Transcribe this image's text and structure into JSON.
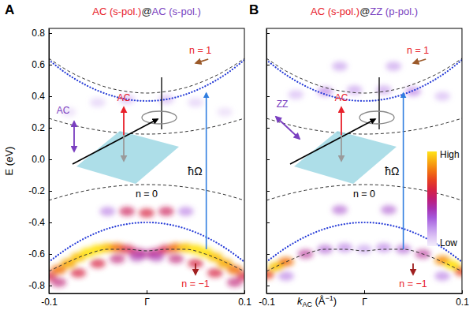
{
  "chart_data": [
    {
      "type": "heatmap",
      "label": "A",
      "title": [
        {
          "text": "AC (s-pol.)",
          "color": "#e8202a"
        },
        {
          "text": "@",
          "color": "#222222"
        },
        {
          "text": "AC (s-pol.)",
          "color": "#7a3fc0"
        }
      ],
      "ylabel": "E (eV)",
      "xlim": [
        -0.1,
        0.1
      ],
      "ylim": [
        -0.85,
        0.83
      ],
      "xticks": [
        {
          "value": -0.1,
          "label": "-0.1"
        },
        {
          "value": 0,
          "label": "Γ"
        },
        0.1
      ],
      "yticks": [
        {
          "value": -0.8,
          "label": "-0.8"
        },
        {
          "value": -0.6,
          "label": "-0.6"
        },
        {
          "value": -0.4,
          "label": "-0.4"
        },
        {
          "value": -0.2,
          "label": "-0.2"
        },
        {
          "value": 0,
          "label": "0.0"
        },
        0.2,
        0.4,
        0.6,
        0.8
      ],
      "x": [
        -0.1,
        -0.08,
        -0.06,
        -0.04,
        -0.02,
        0,
        0.02,
        0.04,
        0.06,
        0.08,
        0.1
      ],
      "series": [
        {
          "color": "#333333",
          "line_style": "dashed",
          "values": [
            0.64,
            0.56,
            0.5,
            0.455,
            0.43,
            0.42,
            0.43,
            0.455,
            0.5,
            0.56,
            0.64
          ]
        },
        {
          "color": "#333333",
          "line_style": "dashed",
          "values": [
            0.26,
            0.224,
            0.196,
            0.176,
            0.164,
            0.16,
            0.164,
            0.176,
            0.196,
            0.224,
            0.26
          ]
        },
        {
          "color": "#333333",
          "line_style": "dashed",
          "values": [
            -0.26,
            -0.224,
            -0.196,
            -0.176,
            -0.164,
            -0.16,
            -0.164,
            -0.176,
            -0.196,
            -0.224,
            -0.26
          ]
        },
        {
          "color": "#333333",
          "line_style": "dashed",
          "values": [
            -0.71,
            -0.65,
            -0.6,
            -0.57,
            -0.57,
            -0.58,
            -0.57,
            -0.57,
            -0.6,
            -0.65,
            -0.71
          ]
        },
        {
          "color": "#2a3fd8",
          "line_style": "dotted",
          "values": [
            0.63,
            0.536,
            0.464,
            0.412,
            0.38,
            0.37,
            0.38,
            0.412,
            0.464,
            0.536,
            0.63
          ]
        },
        {
          "color": "#2a3fd8",
          "line_style": "dotted",
          "values": [
            -0.65,
            -0.56,
            -0.49,
            -0.44,
            -0.41,
            -0.4,
            -0.41,
            -0.44,
            -0.49,
            -0.56,
            -0.65
          ]
        }
      ],
      "intensity": {
        "range": [
          0,
          1
        ],
        "x": [
          -0.1,
          -0.09,
          -0.08,
          -0.07,
          -0.06,
          -0.05,
          -0.04,
          -0.03,
          -0.02,
          -0.01,
          0,
          0.01,
          0.02,
          0.03,
          0.04,
          0.05,
          0.06,
          0.07,
          0.08,
          0.09,
          0.1,
          -0.09,
          -0.07,
          -0.05,
          -0.03,
          -0.01,
          0.01,
          0.03,
          0.05,
          0.07,
          0.09,
          -0.04,
          -0.02,
          0,
          0.02,
          0.04,
          -0.08,
          -0.05,
          -0.02,
          0.02,
          0.05,
          0.08
        ],
        "y": [
          -0.74,
          -0.7,
          -0.66,
          -0.62,
          -0.59,
          -0.57,
          -0.56,
          -0.56,
          -0.57,
          -0.59,
          -0.6,
          -0.59,
          -0.57,
          -0.56,
          -0.56,
          -0.57,
          -0.59,
          -0.62,
          -0.66,
          -0.7,
          -0.74,
          -0.78,
          -0.72,
          -0.66,
          -0.63,
          -0.62,
          -0.62,
          -0.63,
          -0.66,
          -0.72,
          -0.78,
          -0.33,
          -0.33,
          -0.34,
          -0.33,
          -0.33,
          0.3,
          0.36,
          0.38,
          0.38,
          0.36,
          0.3
        ],
        "values": [
          0.6,
          0.8,
          0.9,
          0.95,
          1,
          1,
          0.95,
          0.8,
          0.6,
          0.5,
          0.45,
          0.5,
          0.6,
          0.8,
          0.95,
          1,
          1,
          0.95,
          0.9,
          0.8,
          0.6,
          0.5,
          0.6,
          0.6,
          0.5,
          0.4,
          0.4,
          0.5,
          0.6,
          0.6,
          0.5,
          0.3,
          0.55,
          0.6,
          0.55,
          0.3,
          0.12,
          0.15,
          0.2,
          0.2,
          0.15,
          0.12
        ]
      },
      "annotations": [
        {
          "text": "n = 1",
          "x": 0.055,
          "y": 0.69,
          "color": "#e8202a",
          "marker": "arrow-left"
        },
        {
          "text": "n = 0",
          "x": 0,
          "y": -0.22,
          "color": "#000000"
        },
        {
          "text": "n = −1",
          "x": 0.05,
          "y": -0.79,
          "color": "#e8202a",
          "marker": "arrow-down"
        }
      ],
      "arrows": [
        {
          "label": "ħΩ",
          "x": 0.061,
          "y": [
            -0.57,
            0.42
          ],
          "color": "#2f7de0"
        }
      ],
      "inset": {
        "labels": [
          {
            "text": "AC",
            "color": "#e8202a"
          },
          {
            "text": "AC",
            "color": "#7a3fc0"
          }
        ]
      }
    },
    {
      "type": "heatmap",
      "label": "B",
      "title": [
        {
          "text": "AC (s-pol.)",
          "color": "#e8202a"
        },
        {
          "text": "@",
          "color": "#222222"
        },
        {
          "text": "ZZ (p-pol.)",
          "color": "#7a3fc0"
        }
      ],
      "xlabel": {
        "text": "k",
        "subscript": "AC",
        "unit": " (Å",
        "superscript": "−1",
        "end": ")"
      },
      "tick_labels": "x",
      "xlim": [
        -0.1,
        0.1
      ],
      "ylim": [
        -0.85,
        0.83
      ],
      "xticks": [
        {
          "value": -0.1,
          "label": "-0.1"
        },
        {
          "value": 0,
          "label": "Γ"
        },
        0.1
      ],
      "yticks": [
        -0.8,
        -0.6,
        -0.4,
        -0.2,
        0,
        0.2,
        0.4,
        0.6,
        0.8
      ],
      "x": [
        -0.1,
        -0.08,
        -0.06,
        -0.04,
        -0.02,
        0,
        0.02,
        0.04,
        0.06,
        0.08,
        0.1
      ],
      "series": [
        {
          "color": "#333333",
          "line_style": "dashed",
          "values": [
            0.64,
            0.56,
            0.5,
            0.455,
            0.43,
            0.42,
            0.43,
            0.455,
            0.5,
            0.56,
            0.64
          ]
        },
        {
          "color": "#333333",
          "line_style": "dashed",
          "values": [
            0.26,
            0.224,
            0.196,
            0.176,
            0.164,
            0.16,
            0.164,
            0.176,
            0.196,
            0.224,
            0.26
          ]
        },
        {
          "color": "#333333",
          "line_style": "dashed",
          "values": [
            -0.26,
            -0.224,
            -0.196,
            -0.176,
            -0.164,
            -0.16,
            -0.164,
            -0.176,
            -0.196,
            -0.224,
            -0.26
          ]
        },
        {
          "color": "#333333",
          "line_style": "dashed",
          "values": [
            -0.71,
            -0.65,
            -0.6,
            -0.57,
            -0.57,
            -0.58,
            -0.57,
            -0.57,
            -0.6,
            -0.65,
            -0.71
          ]
        },
        {
          "color": "#2a3fd8",
          "line_style": "dotted",
          "values": [
            0.63,
            0.536,
            0.464,
            0.412,
            0.38,
            0.37,
            0.38,
            0.412,
            0.464,
            0.536,
            0.63
          ]
        },
        {
          "color": "#2a3fd8",
          "line_style": "dotted",
          "values": [
            -0.65,
            -0.56,
            -0.49,
            -0.44,
            -0.41,
            -0.4,
            -0.41,
            -0.44,
            -0.49,
            -0.56,
            -0.65
          ]
        }
      ],
      "intensity": {
        "range": [
          0,
          1
        ],
        "x": [
          -0.025,
          0.03,
          -0.07,
          -0.04,
          -0.01,
          0.02,
          0.05,
          0.08,
          -0.025,
          0.025,
          -0.1,
          -0.09,
          -0.08,
          -0.06,
          -0.04,
          -0.02,
          0,
          0.02,
          0.04,
          0.06,
          0.08,
          0.09,
          0.1,
          -0.08,
          0.08
        ],
        "y": [
          0.59,
          0.59,
          0.41,
          0.43,
          0.44,
          0.44,
          0.43,
          0.4,
          -0.32,
          -0.32,
          -0.73,
          -0.68,
          -0.65,
          -0.6,
          -0.57,
          -0.56,
          -0.57,
          -0.56,
          -0.57,
          -0.6,
          -0.64,
          -0.67,
          -0.71,
          -0.74,
          -0.74
        ],
        "values": [
          0.25,
          0.25,
          0.2,
          0.3,
          0.25,
          0.25,
          0.3,
          0.2,
          0.35,
          0.35,
          0.7,
          0.95,
          0.8,
          0.45,
          0.35,
          0.3,
          0.25,
          0.3,
          0.35,
          0.45,
          0.85,
          1,
          0.7,
          0.3,
          0.3
        ]
      },
      "annotations": [
        {
          "text": "n = 1",
          "x": 0.055,
          "y": 0.69,
          "color": "#e8202a",
          "marker": "arrow-left"
        },
        {
          "text": "n = 0",
          "x": 0,
          "y": -0.22,
          "color": "#000000"
        },
        {
          "text": "n = −1",
          "x": 0.05,
          "y": -0.79,
          "color": "#e8202a",
          "marker": "arrow-down"
        }
      ],
      "arrows": [
        {
          "label": "ħΩ",
          "x": 0.04,
          "y": [
            -0.57,
            0.42
          ],
          "color": "#2f7de0"
        }
      ],
      "inset": {
        "labels": [
          {
            "text": "AC",
            "color": "#e8202a"
          },
          {
            "text": "ZZ",
            "color": "#7a3fc0"
          }
        ]
      },
      "colorbar": {
        "labels": [
          "High",
          "Low"
        ],
        "range": [
          0,
          1
        ]
      }
    }
  ]
}
